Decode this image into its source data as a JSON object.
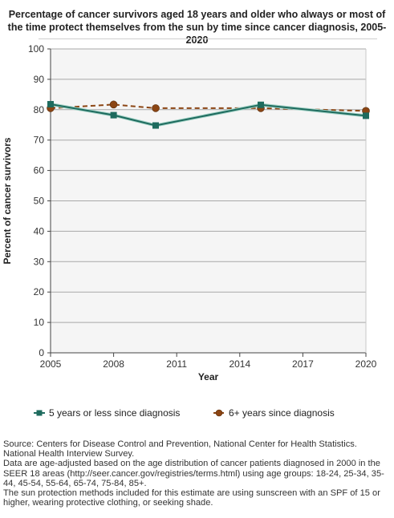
{
  "chart_data": {
    "type": "line",
    "title_lines": [
      "Percentage of cancer survivors aged 18 years and older who always or most of",
      "the time protect themselves from the sun by time since cancer diagnosis, 2005-2020"
    ],
    "xlabel": "Year",
    "ylabel": "Percent of cancer survivors",
    "xlim": [
      2005,
      2020
    ],
    "ylim": [
      0,
      100
    ],
    "xticks": [
      2005,
      2008,
      2011,
      2014,
      2017,
      2020
    ],
    "yticks": [
      0,
      10,
      20,
      30,
      40,
      50,
      60,
      70,
      80,
      90,
      100
    ],
    "grid": "horizontal",
    "legend_position": "bottom",
    "series": [
      {
        "name": "5 years or less since diagnosis",
        "color": "#1e6b5e",
        "line_style": "solid",
        "marker": "square",
        "x": [
          2005,
          2008,
          2010,
          2015,
          2020
        ],
        "y": [
          81.8,
          78.2,
          74.8,
          81.6,
          78.0
        ]
      },
      {
        "name": "6+ years since diagnosis",
        "color": "#8b4513",
        "line_style": "dashed",
        "marker": "circle",
        "x": [
          2005,
          2008,
          2010,
          2015,
          2020
        ],
        "y": [
          80.5,
          81.7,
          80.5,
          80.5,
          79.6
        ]
      }
    ]
  },
  "source_lines": [
    "Source: Centers for Disease Control and Prevention, National Center for Health Statistics. National Health Interview Survey.",
    "Data are age-adjusted based on the age distribution of cancer patients diagnosed in 2000 in the SEER 18 areas (http://seer.cancer.gov/registries/terms.html) using age groups: 18-24, 25-34, 35-44, 45-54, 55-64, 65-74, 75-84, 85+.",
    "The sun protection methods included for this estimate are using sunscreen with an SPF of 15 or higher, wearing protective clothing, or seeking shade."
  ]
}
